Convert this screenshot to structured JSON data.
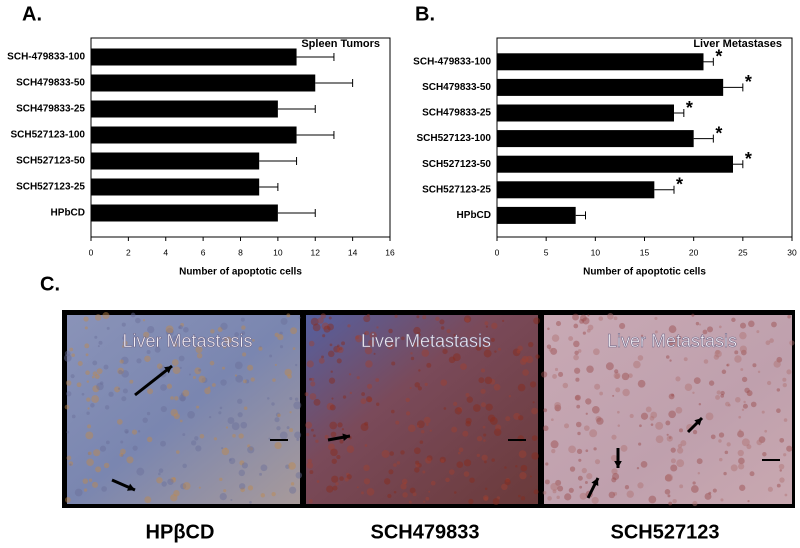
{
  "panel_labels": [
    "A.",
    "B.",
    "C."
  ],
  "chart_data": [
    {
      "type": "bar",
      "orientation": "horizontal",
      "title": "Spleen Tumors",
      "x_label": "Number of apoptotic cells",
      "categories": [
        "SCH-479833-100",
        "SCH479833-50",
        "SCH479833-25",
        "SCH527123-100",
        "SCH527123-50",
        "SCH527123-25",
        "HPbCD"
      ],
      "values": [
        11,
        12,
        10,
        11,
        9,
        9,
        10
      ],
      "errors": [
        2,
        2,
        2,
        2,
        2,
        1,
        2
      ],
      "color": "#000000",
      "xlim": [
        0,
        16
      ],
      "xticks": [
        0,
        2,
        4,
        6,
        8,
        10,
        12,
        14,
        16
      ]
    },
    {
      "type": "bar",
      "orientation": "horizontal",
      "title": "Liver Metastases",
      "x_label": "Number of apoptotic cells",
      "categories": [
        "SCH-479833-100",
        "SCH479833-50",
        "SCH479833-25",
        "SCH527123-100",
        "SCH527123-50",
        "SCH527123-25",
        "HPbCD"
      ],
      "values": [
        21,
        23,
        18,
        20,
        24,
        16,
        8
      ],
      "errors": [
        1,
        2,
        1,
        2,
        1,
        2,
        1
      ],
      "annotations": [
        "*",
        "*",
        "*",
        "*",
        "*",
        "*",
        null
      ],
      "color": "#000000",
      "xlim": [
        0,
        30
      ],
      "xticks": [
        0,
        5,
        10,
        15,
        20,
        25,
        30
      ]
    }
  ],
  "images": [
    {
      "overlay": "Liver Metastasis",
      "caption": "HPβCD"
    },
    {
      "overlay": "Liver Metastasis",
      "caption": "SCH479833"
    },
    {
      "overlay": "Liver Metastasis",
      "caption": "SCH527123"
    }
  ]
}
